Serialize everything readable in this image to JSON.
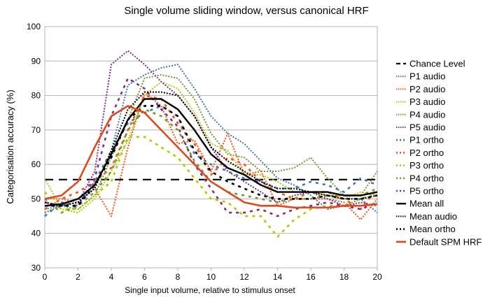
{
  "chart_data": {
    "type": "line",
    "title": "Single volume sliding window, versus canonical HRF",
    "xlabel": "Single input volume, relative to stimulus onset",
    "ylabel": "Categorisation accuracy (%)",
    "xlim": [
      0,
      20
    ],
    "ylim": [
      30,
      100
    ],
    "xticks": [
      "0",
      "2",
      "4",
      "6",
      "8",
      "10",
      "12",
      "14",
      "16",
      "18",
      "20"
    ],
    "yticks": [
      "30",
      "40",
      "50",
      "60",
      "70",
      "80",
      "90",
      "100"
    ],
    "grid": "horizontal",
    "legend_position": "right",
    "x": [
      0,
      1,
      2,
      3,
      4,
      5,
      6,
      7,
      8,
      9,
      10,
      11,
      12,
      13,
      14,
      15,
      16,
      17,
      18,
      19,
      20
    ],
    "series": [
      {
        "name": "Chance Level",
        "color": "#000000",
        "dash": "12,8",
        "width": 2.2,
        "values": [
          55.6,
          55.6,
          55.6,
          55.6,
          55.6,
          55.6,
          55.6,
          55.6,
          55.6,
          55.6,
          55.6,
          55.6,
          55.6,
          55.6,
          55.6,
          55.6,
          55.6,
          55.6,
          55.6,
          55.6,
          55.6
        ]
      },
      {
        "name": "P1 audio",
        "color": "#3c78b4",
        "dash": "2,2",
        "width": 2,
        "values": [
          46,
          48,
          50,
          53,
          64,
          83,
          86,
          88,
          89,
          82,
          74,
          69,
          66,
          61,
          56,
          54,
          51,
          47,
          48,
          50,
          46
        ]
      },
      {
        "name": "P2 audio",
        "color": "#ff4f12",
        "dash": "2,2",
        "width": 2,
        "values": [
          50,
          50,
          49,
          53,
          45,
          65,
          81,
          77,
          66,
          67,
          58,
          69,
          57,
          58,
          48,
          50,
          50,
          50,
          49,
          44,
          50
        ]
      },
      {
        "name": "P3 audio",
        "color": "#b4c800",
        "dash": "2,2",
        "width": 2,
        "values": [
          56,
          47,
          46,
          50,
          58,
          67,
          80,
          84,
          82,
          75,
          66,
          64,
          57,
          57,
          55,
          52,
          52,
          51,
          50,
          52,
          51
        ]
      },
      {
        "name": "P4 audio",
        "color": "#6e9b32",
        "dash": "2,2",
        "width": 2,
        "values": [
          47,
          48,
          47,
          51,
          62,
          73,
          85,
          86,
          85,
          79,
          69,
          63,
          62,
          58,
          58,
          59,
          62,
          56,
          51,
          51,
          58
        ]
      },
      {
        "name": "P5 audio",
        "color": "#7a2d8a",
        "dash": "2,2",
        "width": 2,
        "values": [
          48,
          48,
          49,
          58,
          89,
          93,
          89,
          84,
          80,
          74,
          65,
          58,
          55,
          52,
          49,
          51,
          52,
          50,
          48,
          49,
          48
        ]
      },
      {
        "name": "P1 ortho",
        "color": "#3c78b4",
        "dash": "4,6",
        "width": 2.6,
        "values": [
          45,
          49,
          48,
          55,
          64,
          72,
          75,
          77,
          74,
          63,
          60,
          58,
          56,
          55,
          53,
          53,
          55,
          54,
          52,
          56,
          54
        ]
      },
      {
        "name": "P2 ortho",
        "color": "#ff4f12",
        "dash": "4,6",
        "width": 2.6,
        "values": [
          47,
          50,
          52,
          55,
          59,
          70,
          80,
          79,
          72,
          66,
          57,
          62,
          60,
          55,
          52,
          50,
          52,
          52,
          50,
          47,
          53
        ]
      },
      {
        "name": "P3 ortho",
        "color": "#b4c800",
        "dash": "4,6",
        "width": 2.6,
        "values": [
          52,
          47,
          47,
          51,
          55,
          68,
          68,
          65,
          62,
          56,
          50,
          49,
          45,
          45,
          39,
          44,
          47,
          48,
          48,
          50,
          52
        ]
      },
      {
        "name": "P4 ortho",
        "color": "#6e9b32",
        "dash": "4,6",
        "width": 2.6,
        "values": [
          50,
          46,
          48,
          52,
          58,
          70,
          76,
          74,
          70,
          61,
          55,
          52,
          51,
          50,
          49,
          50,
          50,
          51,
          51,
          51,
          53
        ]
      },
      {
        "name": "P5 ortho",
        "color": "#7a2d8a",
        "dash": "4,6",
        "width": 2.6,
        "values": [
          49,
          48,
          48,
          56,
          74,
          85,
          82,
          76,
          71,
          60,
          53,
          46,
          46,
          47,
          45,
          47,
          48,
          49,
          48,
          47,
          49
        ]
      },
      {
        "name": "Mean all",
        "color": "#000000",
        "dash": "",
        "width": 2.4,
        "values": [
          48,
          48.5,
          50,
          54,
          63,
          73,
          79,
          79,
          76,
          70,
          63,
          59,
          57,
          54,
          52,
          52,
          52,
          52,
          51,
          51,
          52
        ]
      },
      {
        "name": "Mean audio",
        "color": "#000000",
        "dash": "2,2",
        "width": 2,
        "values": [
          49,
          48,
          49,
          53,
          64,
          76,
          81,
          81,
          80,
          74,
          65,
          61,
          58,
          55,
          53,
          53,
          52,
          51,
          50,
          50,
          51
        ]
      },
      {
        "name": "Mean ortho",
        "color": "#000000",
        "dash": "4,6",
        "width": 2.6,
        "values": [
          48,
          48,
          48,
          54,
          62,
          73,
          77,
          77,
          74,
          64,
          58,
          55,
          53,
          51,
          50,
          50,
          50,
          51,
          50,
          50,
          51
        ]
      },
      {
        "name": "Default SPM HRF",
        "color": "#dd4a1c",
        "dash": "",
        "width": 2.6,
        "values": [
          50,
          51,
          55,
          65,
          74,
          77,
          75,
          70,
          65,
          60,
          55,
          52,
          49,
          48,
          48,
          47.5,
          47.5,
          47.5,
          48,
          48,
          48.5
        ]
      }
    ]
  }
}
